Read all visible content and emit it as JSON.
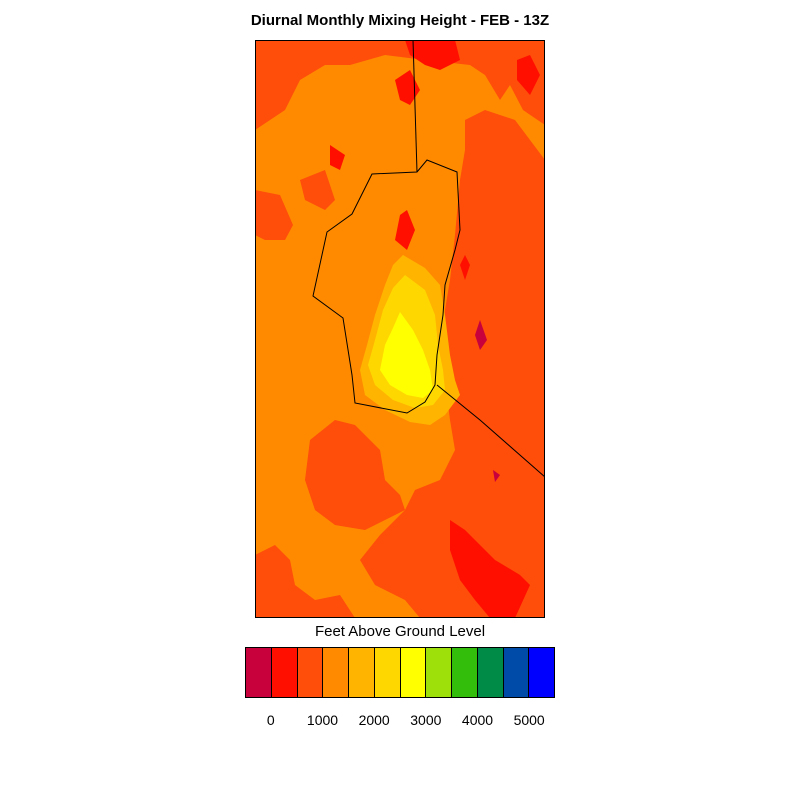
{
  "title": "Diurnal Monthly Mixing Height - FEB - 13Z",
  "colorbar": {
    "title": "Feet Above Ground Level",
    "colors": [
      "#c8003c",
      "#ff0f00",
      "#ff4d0a",
      "#ff8a00",
      "#ffb400",
      "#ffd700",
      "#ffff00",
      "#9ee00a",
      "#32be0a",
      "#008c46",
      "#004ba8",
      "#0000ff"
    ],
    "tick_labels": [
      "0",
      "1000",
      "2000",
      "3000",
      "4000",
      "5000"
    ]
  },
  "map_colors": {
    "base": "#ff8a00",
    "dark_orange": "#ff4d0a",
    "red": "#ff0f00",
    "crimson": "#c8003c",
    "amber": "#ffb400",
    "gold": "#ffd700",
    "yellow": "#ffff00"
  }
}
